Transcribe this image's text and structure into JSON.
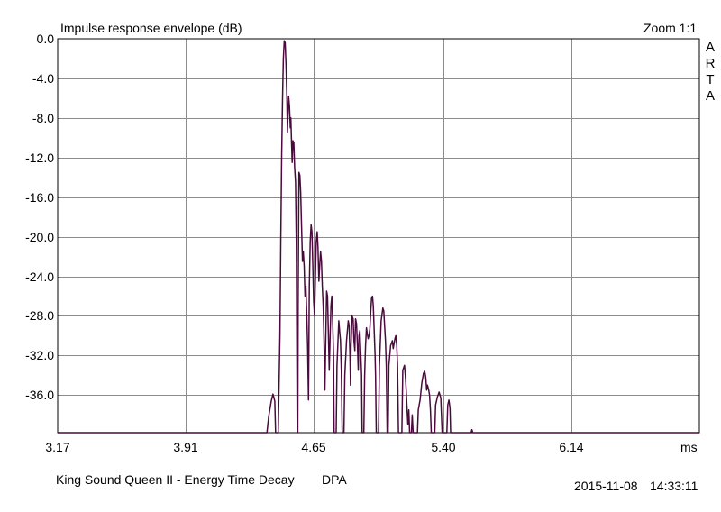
{
  "chart_data": {
    "type": "line",
    "title": "Impulse response envelope (dB)",
    "zoom_label": "Zoom 1:1",
    "brand_letters": [
      "A",
      "R",
      "T",
      "A"
    ],
    "xlabel": "ms",
    "ylabel": "",
    "x_ticks": [
      "3.17",
      "3.91",
      "4.65",
      "5.40",
      "6.14"
    ],
    "x_tick_values": [
      3.17,
      3.91,
      4.65,
      5.4,
      6.14
    ],
    "y_ticks": [
      "0.0",
      "-4.0",
      "-8.0",
      "-12.0",
      "-16.0",
      "-20.0",
      "-24.0",
      "-28.0",
      "-32.0",
      "-36.0"
    ],
    "y_tick_values": [
      0,
      -4,
      -8,
      -12,
      -16,
      -20,
      -24,
      -28,
      -32,
      -36
    ],
    "xlim": [
      3.17,
      6.88
    ],
    "ylim": [
      -39.8,
      0
    ],
    "grid": true,
    "line_color": "#4a0a3c",
    "series": [
      {
        "points": [
          [
            3.17,
            -39.8
          ],
          [
            4.38,
            -39.8
          ],
          [
            4.39,
            -38.2
          ],
          [
            4.405,
            -36.6
          ],
          [
            4.415,
            -35.9
          ],
          [
            4.425,
            -36.6
          ],
          [
            4.43,
            -39.8
          ],
          [
            4.445,
            -39.8
          ],
          [
            4.455,
            -30.0
          ],
          [
            4.46,
            -20.0
          ],
          [
            4.465,
            -12.0
          ],
          [
            4.47,
            -6.0
          ],
          [
            4.475,
            -2.0
          ],
          [
            4.48,
            -0.2
          ],
          [
            4.485,
            -0.4
          ],
          [
            4.49,
            -2.5
          ],
          [
            4.495,
            -6.0
          ],
          [
            4.498,
            -9.5
          ],
          [
            4.502,
            -7.5
          ],
          [
            4.505,
            -5.8
          ],
          [
            4.51,
            -6.8
          ],
          [
            4.515,
            -9.0
          ],
          [
            4.518,
            -8.0
          ],
          [
            4.522,
            -10.5
          ],
          [
            4.526,
            -12.5
          ],
          [
            4.53,
            -10.3
          ],
          [
            4.535,
            -10.5
          ],
          [
            4.54,
            -13.0
          ],
          [
            4.545,
            -14.5
          ],
          [
            4.55,
            -21.0
          ],
          [
            4.555,
            -39.8
          ],
          [
            4.558,
            -39.8
          ],
          [
            4.56,
            -27.0
          ],
          [
            4.565,
            -13.5
          ],
          [
            4.57,
            -13.8
          ],
          [
            4.575,
            -15.5
          ],
          [
            4.58,
            -19.0
          ],
          [
            4.585,
            -22.5
          ],
          [
            4.59,
            -21.5
          ],
          [
            4.595,
            -23.0
          ],
          [
            4.6,
            -26.0
          ],
          [
            4.605,
            -25.0
          ],
          [
            4.61,
            -28.0
          ],
          [
            4.615,
            -31.0
          ],
          [
            4.62,
            -36.5
          ],
          [
            4.625,
            -25.0
          ],
          [
            4.63,
            -20.5
          ],
          [
            4.635,
            -18.8
          ],
          [
            4.64,
            -19.5
          ],
          [
            4.645,
            -23.0
          ],
          [
            4.65,
            -26.5
          ],
          [
            4.655,
            -28.0
          ],
          [
            4.66,
            -24.0
          ],
          [
            4.665,
            -20.5
          ],
          [
            4.67,
            -19.5
          ],
          [
            4.675,
            -21.0
          ],
          [
            4.68,
            -24.5
          ],
          [
            4.685,
            -23.0
          ],
          [
            4.69,
            -21.5
          ],
          [
            4.695,
            -22.5
          ],
          [
            4.7,
            -25.0
          ],
          [
            4.705,
            -27.0
          ],
          [
            4.71,
            -30.5
          ],
          [
            4.715,
            -35.5
          ],
          [
            4.72,
            -30.0
          ],
          [
            4.725,
            -25.5
          ],
          [
            4.73,
            -26.0
          ],
          [
            4.735,
            -29.5
          ],
          [
            4.74,
            -33.5
          ],
          [
            4.745,
            -30.0
          ],
          [
            4.75,
            -27.0
          ],
          [
            4.755,
            -26.0
          ],
          [
            4.76,
            -28.5
          ],
          [
            4.765,
            -32.0
          ],
          [
            4.768,
            -39.8
          ],
          [
            4.78,
            -39.8
          ],
          [
            4.785,
            -33.0
          ],
          [
            4.795,
            -28.5
          ],
          [
            4.8,
            -29.5
          ],
          [
            4.805,
            -30.5
          ],
          [
            4.81,
            -33.5
          ],
          [
            4.815,
            -39.8
          ],
          [
            4.825,
            -39.8
          ],
          [
            4.83,
            -34.0
          ],
          [
            4.84,
            -30.5
          ],
          [
            4.85,
            -28.5
          ],
          [
            4.855,
            -29.0
          ],
          [
            4.86,
            -32.0
          ],
          [
            4.863,
            -35.0
          ],
          [
            4.866,
            -31.0
          ],
          [
            4.872,
            -28.0
          ],
          [
            4.878,
            -28.3
          ],
          [
            4.883,
            -30.5
          ],
          [
            4.888,
            -31.5
          ],
          [
            4.892,
            -28.3
          ],
          [
            4.898,
            -28.8
          ],
          [
            4.903,
            -31.0
          ],
          [
            4.908,
            -33.5
          ],
          [
            4.912,
            -30.0
          ],
          [
            4.917,
            -29.5
          ],
          [
            4.922,
            -31.5
          ],
          [
            4.927,
            -34.0
          ],
          [
            4.93,
            -39.8
          ],
          [
            4.94,
            -39.8
          ],
          [
            4.945,
            -34.0
          ],
          [
            4.95,
            -31.0
          ],
          [
            4.955,
            -29.2
          ],
          [
            4.96,
            -29.8
          ],
          [
            4.965,
            -30.3
          ],
          [
            4.97,
            -30.0
          ],
          [
            4.975,
            -29.3
          ],
          [
            4.98,
            -27.5
          ],
          [
            4.985,
            -26.2
          ],
          [
            4.99,
            -26.0
          ],
          [
            4.995,
            -27.0
          ],
          [
            5.0,
            -29.5
          ],
          [
            5.005,
            -32.0
          ],
          [
            5.008,
            -34.0
          ],
          [
            5.012,
            -39.8
          ],
          [
            5.025,
            -39.8
          ],
          [
            5.03,
            -33.0
          ],
          [
            5.04,
            -28.5
          ],
          [
            5.05,
            -27.2
          ],
          [
            5.055,
            -27.5
          ],
          [
            5.065,
            -30.5
          ],
          [
            5.07,
            -33.0
          ],
          [
            5.075,
            -39.8
          ],
          [
            5.08,
            -39.8
          ],
          [
            5.085,
            -33.0
          ],
          [
            5.095,
            -31.0
          ],
          [
            5.105,
            -30.5
          ],
          [
            5.11,
            -31.3
          ],
          [
            5.12,
            -30.3
          ],
          [
            5.125,
            -30.0
          ],
          [
            5.13,
            -31.0
          ],
          [
            5.135,
            -33.0
          ],
          [
            5.14,
            -39.8
          ],
          [
            5.16,
            -39.8
          ],
          [
            5.165,
            -33.5
          ],
          [
            5.175,
            -33.0
          ],
          [
            5.18,
            -34.0
          ],
          [
            5.185,
            -35.5
          ],
          [
            5.19,
            -37.5
          ],
          [
            5.195,
            -39.0
          ],
          [
            5.2,
            -37.5
          ],
          [
            5.205,
            -39.8
          ],
          [
            5.215,
            -39.8
          ],
          [
            5.22,
            -38.0
          ],
          [
            5.225,
            -39.8
          ],
          [
            5.25,
            -39.8
          ],
          [
            5.255,
            -37.5
          ],
          [
            5.265,
            -36.5
          ],
          [
            5.275,
            -34.8
          ],
          [
            5.285,
            -33.8
          ],
          [
            5.292,
            -33.6
          ],
          [
            5.298,
            -34.2
          ],
          [
            5.303,
            -35.5
          ],
          [
            5.308,
            -35.0
          ],
          [
            5.315,
            -35.5
          ],
          [
            5.32,
            -36.0
          ],
          [
            5.325,
            -37.5
          ],
          [
            5.33,
            -39.8
          ],
          [
            5.35,
            -39.8
          ],
          [
            5.355,
            -37.0
          ],
          [
            5.365,
            -36.2
          ],
          [
            5.375,
            -35.7
          ],
          [
            5.385,
            -36.3
          ],
          [
            5.39,
            -38.5
          ],
          [
            5.393,
            -39.8
          ],
          [
            5.42,
            -39.8
          ],
          [
            5.425,
            -37.0
          ],
          [
            5.432,
            -36.5
          ],
          [
            5.438,
            -37.3
          ],
          [
            5.442,
            -39.8
          ],
          [
            5.56,
            -39.8
          ],
          [
            5.565,
            -39.5
          ],
          [
            5.57,
            -39.8
          ],
          [
            6.88,
            -39.8
          ]
        ]
      }
    ]
  },
  "footer": {
    "caption": "King Sound Queen II - Energy Time Decay",
    "measurement": "DPA",
    "date": "2015-11-08",
    "time": "14:33:11"
  }
}
